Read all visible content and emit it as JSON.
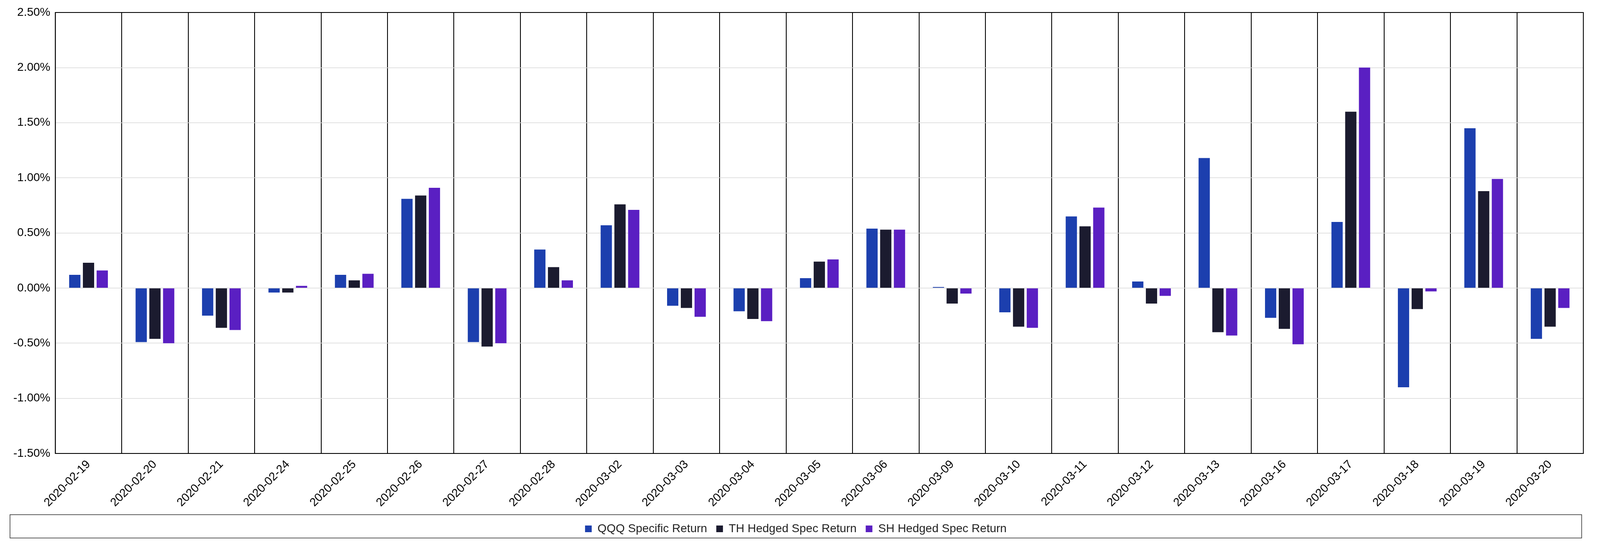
{
  "chart_data": {
    "type": "bar",
    "categories": [
      "2020-02-19",
      "2020-02-20",
      "2020-02-21",
      "2020-02-24",
      "2020-02-25",
      "2020-02-26",
      "2020-02-27",
      "2020-02-28",
      "2020-03-02",
      "2020-03-03",
      "2020-03-04",
      "2020-03-05",
      "2020-03-06",
      "2020-03-09",
      "2020-03-10",
      "2020-03-11",
      "2020-03-12",
      "2020-03-13",
      "2020-03-16",
      "2020-03-17",
      "2020-03-18",
      "2020-03-19",
      "2020-03-20"
    ],
    "series": [
      {
        "name": "QQQ Specific Return",
        "color": "#1c3fae",
        "values": [
          0.12,
          -0.49,
          -0.25,
          -0.04,
          0.12,
          0.81,
          -0.49,
          0.35,
          0.57,
          -0.16,
          -0.21,
          0.09,
          0.54,
          0.01,
          -0.22,
          0.65,
          0.06,
          1.18,
          -0.27,
          0.6,
          -0.9,
          1.45,
          -0.46
        ]
      },
      {
        "name": "TH Hedged Spec Return",
        "color": "#1b1b2f",
        "values": [
          0.23,
          -0.46,
          -0.36,
          -0.04,
          0.07,
          0.84,
          -0.53,
          0.19,
          0.76,
          -0.18,
          -0.28,
          0.24,
          0.53,
          -0.14,
          -0.35,
          0.56,
          -0.14,
          -0.4,
          -0.37,
          1.6,
          -0.19,
          0.88,
          -0.35
        ]
      },
      {
        "name": "SH Hedged Spec Return",
        "color": "#5a1fc2",
        "values": [
          0.16,
          -0.5,
          -0.38,
          0.02,
          0.13,
          0.91,
          -0.5,
          0.07,
          0.71,
          -0.26,
          -0.3,
          0.26,
          0.53,
          -0.05,
          -0.36,
          0.73,
          -0.07,
          -0.43,
          -0.51,
          2.0,
          -0.03,
          0.99,
          -0.18
        ]
      }
    ],
    "ylim": [
      -1.5,
      2.5
    ],
    "yticks": [
      {
        "value": -1.5,
        "label": "-1.50%"
      },
      {
        "value": -1.0,
        "label": "-1.00%"
      },
      {
        "value": -0.5,
        "label": "-0.50%"
      },
      {
        "value": 0,
        "label": "0.00%"
      },
      {
        "value": 0.5,
        "label": "0.50%"
      },
      {
        "value": 1.0,
        "label": "1.00%"
      },
      {
        "value": 1.5,
        "label": "1.50%"
      },
      {
        "value": 2.0,
        "label": "2.00%"
      },
      {
        "value": 2.5,
        "label": "2.50%"
      }
    ],
    "grid": true,
    "legend": "bottom"
  }
}
